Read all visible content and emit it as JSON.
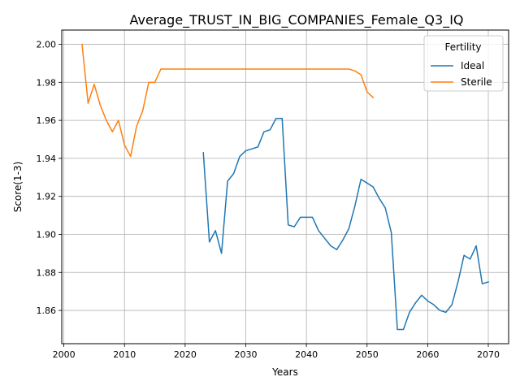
{
  "chart_data": {
    "type": "line",
    "title": "Average_TRUST_IN_BIG_COMPANIES_Female_Q3_IQ",
    "xlabel": "Years",
    "ylabel": "Score(1-3)",
    "xlim": [
      1999.65,
      2073.35
    ],
    "ylim": [
      1.8425,
      2.0075
    ],
    "x_ticks": [
      2000,
      2010,
      2020,
      2030,
      2040,
      2050,
      2060,
      2070
    ],
    "y_ticks": [
      1.86,
      1.88,
      1.9,
      1.92,
      1.94,
      1.96,
      1.98,
      2.0
    ],
    "x_tick_labels": [
      "2000",
      "2010",
      "2020",
      "2030",
      "2040",
      "2050",
      "2060",
      "2070"
    ],
    "y_tick_labels": [
      "1.86",
      "1.88",
      "1.90",
      "1.92",
      "1.94",
      "1.96",
      "1.98",
      "2.00"
    ],
    "grid": true,
    "legend": {
      "title": "Fertility",
      "placement": "top-right"
    },
    "series": [
      {
        "name": "Ideal",
        "color": "#1f77b4",
        "x": [
          2023,
          2024,
          2025,
          2026,
          2027,
          2028,
          2029,
          2030,
          2031,
          2032,
          2033,
          2034,
          2035,
          2036,
          2037,
          2038,
          2039,
          2040,
          2041,
          2042,
          2043,
          2044,
          2045,
          2046,
          2047,
          2048,
          2049,
          2050,
          2051,
          2052,
          2053,
          2054,
          2055,
          2056,
          2057,
          2058,
          2059,
          2060,
          2061,
          2062,
          2063,
          2064,
          2065,
          2066,
          2067,
          2068,
          2069,
          2070
        ],
        "y": [
          1.943,
          1.896,
          1.902,
          1.89,
          1.928,
          1.932,
          1.941,
          1.944,
          1.945,
          1.946,
          1.954,
          1.955,
          1.961,
          1.961,
          1.905,
          1.904,
          1.909,
          1.909,
          1.909,
          1.902,
          1.898,
          1.894,
          1.892,
          1.897,
          1.903,
          1.915,
          1.929,
          1.927,
          1.925,
          1.919,
          1.914,
          1.901,
          1.85,
          1.85,
          1.859,
          1.864,
          1.868,
          1.865,
          1.863,
          1.86,
          1.859,
          1.863,
          1.875,
          1.889,
          1.887,
          1.894,
          1.874,
          1.875
        ]
      },
      {
        "name": "Sterile",
        "color": "#ff7f0e",
        "x": [
          2003,
          2004,
          2005,
          2006,
          2007,
          2008,
          2009,
          2010,
          2011,
          2012,
          2013,
          2014,
          2015,
          2016,
          2017,
          2018,
          2019,
          2020,
          2021,
          2022,
          2023,
          2024,
          2025,
          2026,
          2027,
          2028,
          2029,
          2030,
          2031,
          2032,
          2033,
          2034,
          2035,
          2036,
          2037,
          2038,
          2039,
          2040,
          2041,
          2042,
          2043,
          2044,
          2045,
          2046,
          2047,
          2048,
          2049,
          2050,
          2051
        ],
        "y": [
          2.0,
          1.969,
          1.979,
          1.968,
          1.96,
          1.954,
          1.96,
          1.947,
          1.941,
          1.957,
          1.965,
          1.98,
          1.98,
          1.987,
          1.987,
          1.987,
          1.987,
          1.987,
          1.987,
          1.987,
          1.987,
          1.987,
          1.987,
          1.987,
          1.987,
          1.987,
          1.987,
          1.987,
          1.987,
          1.987,
          1.987,
          1.987,
          1.987,
          1.987,
          1.987,
          1.987,
          1.987,
          1.987,
          1.987,
          1.987,
          1.987,
          1.987,
          1.987,
          1.987,
          1.987,
          1.986,
          1.984,
          1.975,
          1.972
        ]
      }
    ]
  }
}
